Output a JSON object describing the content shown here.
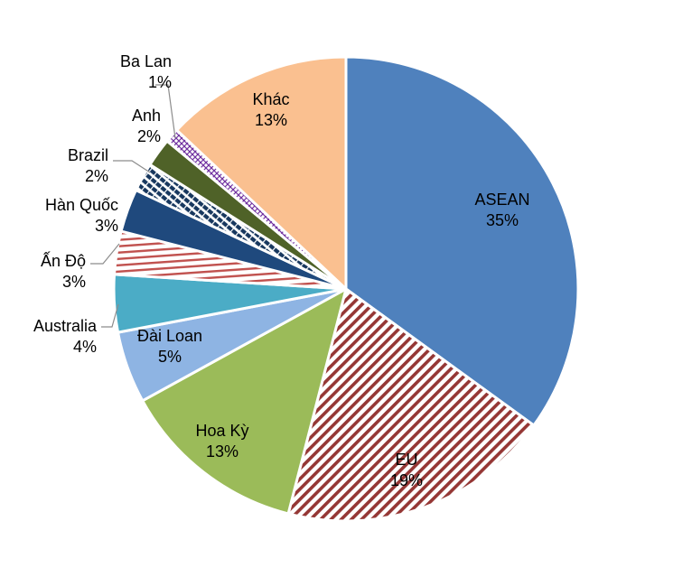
{
  "chart_data": {
    "type": "pie",
    "labels": [
      "ASEAN",
      "EU",
      "Hoa Kỳ",
      "Đài Loan",
      "Australia",
      "Ấn Độ",
      "Hàn Quốc",
      "Brazil",
      "Anh",
      "Ba Lan",
      "Khác"
    ],
    "values": [
      35,
      19,
      13,
      5,
      4,
      3,
      3,
      2,
      2,
      1,
      13
    ],
    "value_labels": [
      "35%",
      "19%",
      "13%",
      "5%",
      "4%",
      "3%",
      "3%",
      "2%",
      "2%",
      "1%",
      "13%"
    ],
    "colors": [
      "#4F81BD",
      "#953735",
      "#9BBB59",
      "#8EB4E3",
      "#4BACC6",
      "#C0504D",
      "#1F497D",
      "#17375E",
      "#4F6228",
      "#7030A0",
      "#FAC090"
    ],
    "fill_patterns": [
      "solid",
      "diagonal-stripes",
      "solid",
      "solid",
      "solid",
      "horizontal-stripes",
      "solid",
      "dashed-stripes",
      "solid",
      "crosshatch",
      "solid"
    ],
    "legend": "none"
  }
}
